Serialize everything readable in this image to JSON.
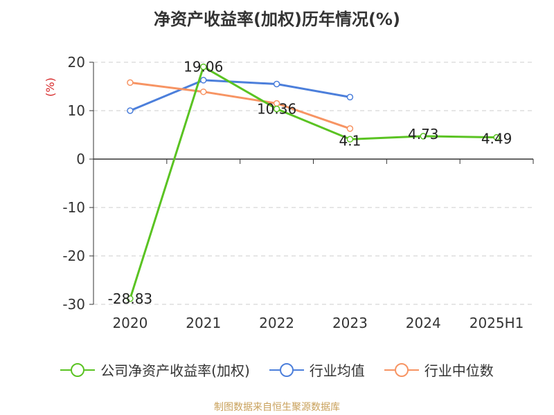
{
  "title": "净资产收益率(加权)历年情况(%)",
  "source": "制图数据来自恒生聚源数据库",
  "chart_data": {
    "type": "line",
    "title": "净资产收益率(加权)历年情况(%)",
    "ylabel": "(%)",
    "xlabel": "",
    "categories": [
      "2020",
      "2021",
      "2022",
      "2023",
      "2024",
      "2025H1"
    ],
    "ylim": [
      -30,
      20
    ],
    "yticks": [
      20,
      10,
      0,
      -10,
      -20,
      -30
    ],
    "grid": true,
    "legend_position": "bottom",
    "series": [
      {
        "name": "公司净资产收益率(加权)",
        "color": "#5ac322",
        "values": [
          -28.83,
          19.06,
          10.36,
          4.1,
          4.73,
          4.49
        ],
        "labels": [
          "-28.83",
          "19.06",
          "10.36",
          "4.1",
          "4.73",
          "4.49"
        ]
      },
      {
        "name": "行业均值",
        "color": "#4c7fdb",
        "values": [
          10.0,
          16.3,
          15.5,
          12.8,
          null,
          null
        ]
      },
      {
        "name": "行业中位数",
        "color": "#f79463",
        "values": [
          15.8,
          13.9,
          11.5,
          6.3,
          null,
          null
        ]
      }
    ]
  }
}
